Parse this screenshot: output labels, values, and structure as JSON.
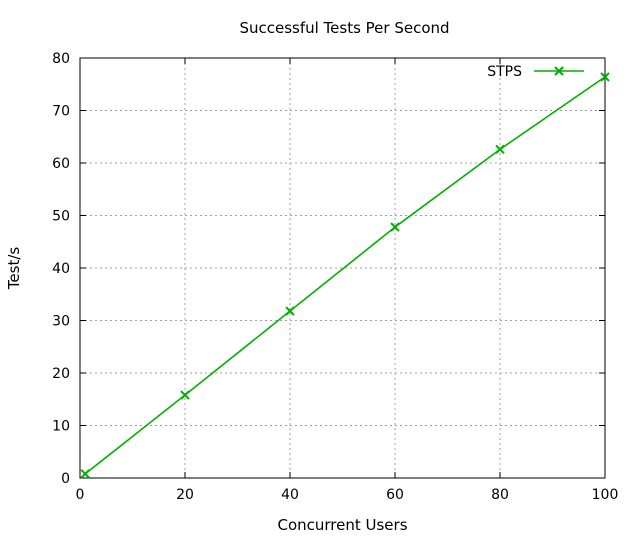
{
  "chart_data": {
    "type": "line",
    "title": "Successful Tests Per Second",
    "xlabel": "Concurrent Users",
    "ylabel": "Test/s",
    "xlim": [
      0,
      100
    ],
    "ylim": [
      0,
      80
    ],
    "x_ticks": [
      0,
      20,
      40,
      60,
      80,
      100
    ],
    "y_ticks": [
      0,
      10,
      20,
      30,
      40,
      50,
      60,
      70,
      80
    ],
    "grid": true,
    "legend_position": "top-right",
    "series": [
      {
        "name": "STPS",
        "color": "#00b000",
        "marker": "x",
        "x": [
          1,
          20,
          40,
          60,
          80,
          100
        ],
        "y": [
          0.8,
          15.8,
          31.8,
          47.8,
          62.6,
          76.4
        ]
      }
    ]
  }
}
